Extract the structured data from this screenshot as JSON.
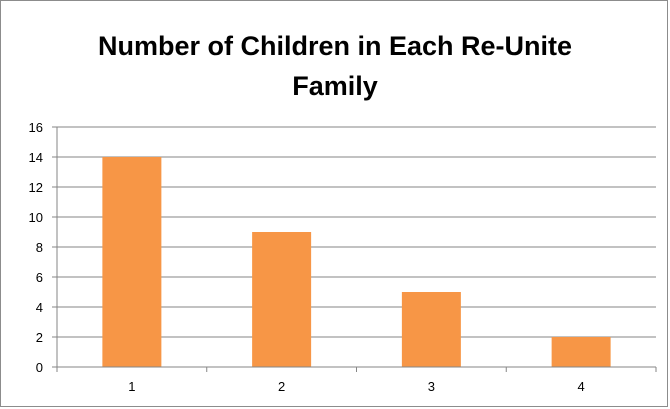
{
  "chart_data": {
    "type": "bar",
    "title_lines": [
      "Number of Children in Each Re-Unite",
      "Family"
    ],
    "categories": [
      "1",
      "2",
      "3",
      "4"
    ],
    "series": [
      {
        "values": [
          14,
          9,
          5,
          2
        ],
        "color": "#F79646"
      }
    ],
    "xlabel": "",
    "ylabel": "",
    "ylim": [
      0,
      16
    ],
    "yticks": [
      0,
      2,
      4,
      6,
      8,
      10,
      12,
      14,
      16
    ],
    "grid": true,
    "legend": "none"
  }
}
